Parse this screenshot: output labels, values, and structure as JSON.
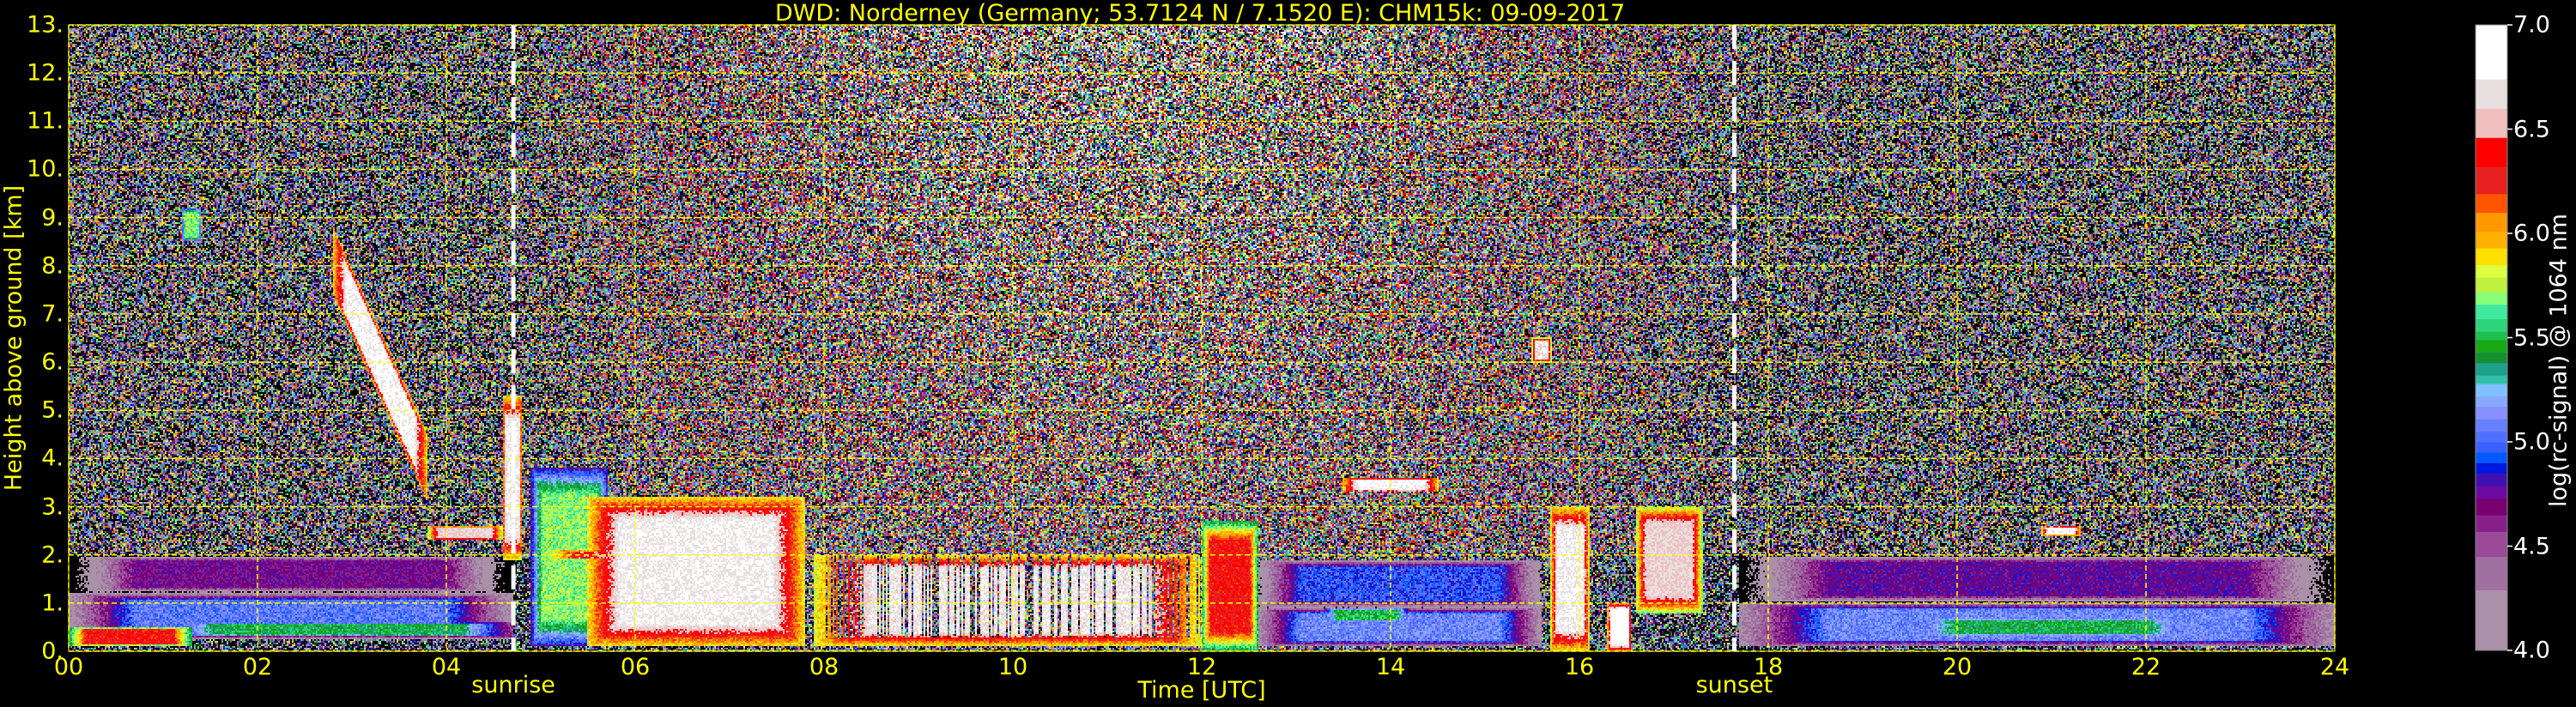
{
  "chart_data": {
    "type": "heatmap",
    "title": "DWD: Norderney (Germany; 53.7124 N / 7.1520 E):    CHM15k: 09-09-2017",
    "xlabel": "Time [UTC]",
    "ylabel": "Height above ground [km]",
    "xlim": [
      0,
      24
    ],
    "ylim": [
      0,
      13
    ],
    "x_ticks": [
      "00",
      "02",
      "04",
      "06",
      "08",
      "10",
      "12",
      "14",
      "16",
      "18",
      "20",
      "22",
      "24"
    ],
    "x_tick_values": [
      0,
      2,
      4,
      6,
      8,
      10,
      12,
      14,
      16,
      18,
      20,
      22,
      24
    ],
    "y_ticks": [
      "0.",
      "1.",
      "2.",
      "3.",
      "4.",
      "5.",
      "6.",
      "7.",
      "8.",
      "9.",
      "10.",
      "11.",
      "12.",
      "13."
    ],
    "y_tick_values": [
      0,
      1,
      2,
      3,
      4,
      5,
      6,
      7,
      8,
      9,
      10,
      11,
      12,
      13
    ],
    "grid": true,
    "grid_color": "#ffff00",
    "events": [
      {
        "label": "sunrise",
        "time": 4.71
      },
      {
        "label": "sunset",
        "time": 17.64
      }
    ],
    "colorbar": {
      "label": "log(rc-signal) @ 1064 nm",
      "range": [
        4.0,
        7.0
      ],
      "ticks": [
        "4.0",
        "4.5",
        "5.0",
        "5.5",
        "6.0",
        "6.5",
        "7.0"
      ],
      "tick_values": [
        4.0,
        4.5,
        5.0,
        5.5,
        6.0,
        6.5,
        7.0
      ],
      "bounds": [
        4.0,
        4.29,
        4.45,
        4.57,
        4.65,
        4.73,
        4.79,
        4.85,
        4.9,
        4.95,
        5.0,
        5.05,
        5.11,
        5.17,
        5.22,
        5.28,
        5.32,
        5.38,
        5.43,
        5.49,
        5.53,
        5.59,
        5.66,
        5.72,
        5.79,
        5.85,
        5.93,
        6.01,
        6.1,
        6.19,
        6.32,
        6.46,
        6.6,
        6.74,
        7.0
      ],
      "colors": [
        "#aa90a8",
        "#a070a0",
        "#9a4a98",
        "#88208a",
        "#780070",
        "#6a0aa0",
        "#4010b0",
        "#0018e0",
        "#0058ff",
        "#3a60ff",
        "#5070ff",
        "#6680ff",
        "#8890ff",
        "#88a8ff",
        "#80c0ff",
        "#30c0a8",
        "#1ea08a",
        "#149030",
        "#18a818",
        "#1fbf50",
        "#2ed47a",
        "#40e8a0",
        "#88ff77",
        "#c0f040",
        "#ddff40",
        "#ffe000",
        "#ffb000",
        "#ff9900",
        "#ff5500",
        "#e82020",
        "#ff0000",
        "#f0c0c0",
        "#e8e0e0",
        "#ffffff"
      ],
      "below_color": "#000000"
    },
    "features": [
      {
        "t": [
          0.0,
          4.7
        ],
        "h": [
          1.2,
          2.0
        ],
        "value": 4.7
      },
      {
        "t": [
          0.0,
          4.7
        ],
        "h": [
          0.25,
          1.2
        ],
        "value": 5.05
      },
      {
        "t": [
          0.0,
          1.3
        ],
        "h": [
          0.1,
          0.5
        ],
        "value": 6.3
      },
      {
        "t": [
          1.0,
          4.7
        ],
        "h": [
          0.3,
          0.6
        ],
        "value": 5.45
      },
      {
        "t": [
          1.2,
          1.4
        ],
        "h": [
          8.5,
          9.2
        ],
        "value": 5.7
      },
      {
        "t": [
          2.8,
          3.8
        ],
        "h": [
          4.0,
          8.3
        ],
        "value": 6.8,
        "slope": true
      },
      {
        "t": [
          3.8,
          4.6
        ],
        "h": [
          2.3,
          2.6
        ],
        "value": 6.6
      },
      {
        "t": [
          4.6,
          4.8
        ],
        "h": [
          1.9,
          5.3
        ],
        "value": 6.75
      },
      {
        "t": [
          4.9,
          5.7
        ],
        "h": [
          0.1,
          3.8
        ],
        "value": 5.7
      },
      {
        "t": [
          5.5,
          7.8
        ],
        "h": [
          0.1,
          3.2
        ],
        "value": 6.75
      },
      {
        "t": [
          5.0,
          7.8
        ],
        "h": [
          1.9,
          2.1
        ],
        "value": 6.4
      },
      {
        "t": [
          7.9,
          12.0
        ],
        "h": [
          0.1,
          2.0
        ],
        "value": 6.7,
        "broken": true
      },
      {
        "t": [
          12.0,
          12.6
        ],
        "h": [
          0.0,
          2.7
        ],
        "value": 6.3
      },
      {
        "t": [
          12.6,
          15.6
        ],
        "h": [
          0.1,
          0.9
        ],
        "value": 5.1
      },
      {
        "t": [
          13.3,
          14.2
        ],
        "h": [
          0.6,
          0.9
        ],
        "value": 5.5
      },
      {
        "t": [
          12.6,
          15.6
        ],
        "h": [
          0.9,
          1.9
        ],
        "value": 4.95
      },
      {
        "t": [
          13.5,
          14.5
        ],
        "h": [
          3.3,
          3.6
        ],
        "value": 6.8
      },
      {
        "t": [
          15.7,
          16.1
        ],
        "h": [
          0.0,
          3.0
        ],
        "value": 6.75
      },
      {
        "t": [
          16.3,
          16.55
        ],
        "h": [
          0.0,
          1.0
        ],
        "value": 6.9
      },
      {
        "t": [
          16.6,
          17.3
        ],
        "h": [
          0.8,
          3.0
        ],
        "value": 6.6
      },
      {
        "t": [
          15.5,
          15.7
        ],
        "h": [
          6.0,
          6.5
        ],
        "value": 6.7
      },
      {
        "t": [
          17.7,
          24.0
        ],
        "h": [
          1.0,
          2.0
        ],
        "value": 4.75
      },
      {
        "t": [
          17.7,
          24.0
        ],
        "h": [
          0.1,
          1.0
        ],
        "value": 5.1
      },
      {
        "t": [
          19.5,
          22.5
        ],
        "h": [
          0.3,
          0.7
        ],
        "value": 5.45
      },
      {
        "t": [
          20.9,
          21.3
        ],
        "h": [
          2.4,
          2.6
        ],
        "value": 6.8
      }
    ]
  }
}
